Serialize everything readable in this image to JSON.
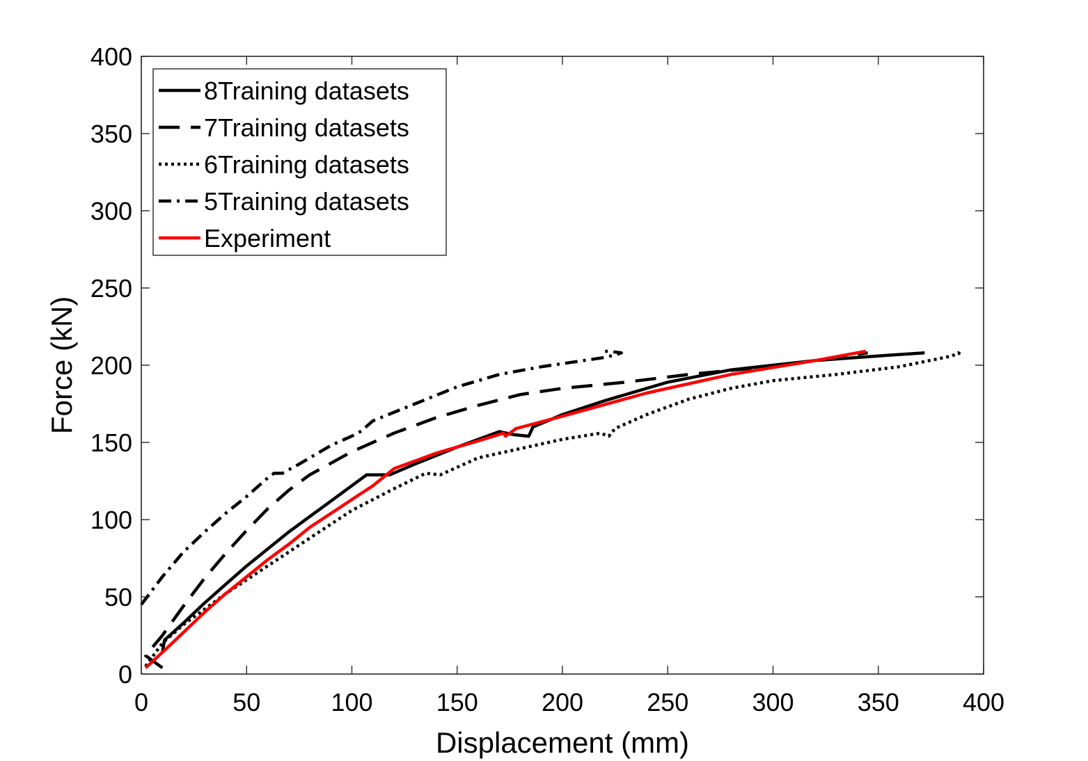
{
  "chart_data": {
    "type": "line",
    "xlabel": "Displacement (mm)",
    "ylabel": "Force (kN)",
    "xlim": [
      0,
      400
    ],
    "ylim": [
      0,
      400
    ],
    "xticks": [
      0,
      50,
      100,
      150,
      200,
      250,
      300,
      350,
      400
    ],
    "yticks": [
      0,
      50,
      100,
      150,
      200,
      250,
      300,
      350,
      400
    ],
    "grid": false,
    "legend_position": "top-left",
    "series": [
      {
        "name": "8Training datasets",
        "color": "#000000",
        "style": "solid",
        "x": [
          10,
          11,
          20,
          30,
          40,
          50,
          60,
          70,
          80,
          90,
          100,
          107,
          118,
          130,
          150,
          170,
          177,
          184,
          186,
          200,
          220,
          250,
          280,
          320,
          350,
          372
        ],
        "y": [
          14,
          22,
          33,
          46,
          58,
          70,
          81,
          92,
          102,
          112,
          122,
          129,
          129,
          136,
          147,
          157,
          155,
          154,
          160,
          168,
          177,
          189,
          197,
          203,
          206,
          208
        ]
      },
      {
        "name": "7Training datasets",
        "color": "#000000",
        "style": "dashed",
        "x": [
          10,
          2,
          10,
          20,
          30,
          40,
          50,
          60,
          70,
          80,
          100,
          120,
          140,
          160,
          180,
          200,
          230,
          260,
          290,
          320,
          345
        ],
        "y": [
          4,
          12,
          25,
          44,
          62,
          78,
          93,
          107,
          119,
          129,
          144,
          156,
          166,
          174,
          181,
          185,
          189,
          194,
          198,
          203,
          208
        ]
      },
      {
        "name": "6Training datasets",
        "color": "#000000",
        "style": "dotted",
        "x": [
          2,
          10,
          20,
          40,
          60,
          80,
          100,
          120,
          135,
          142,
          160,
          180,
          200,
          218,
          222,
          225,
          240,
          260,
          280,
          300,
          330,
          360,
          385,
          388,
          390
        ],
        "y": [
          5,
          20,
          32,
          52,
          70,
          88,
          106,
          120,
          130,
          129,
          140,
          146,
          152,
          156,
          154,
          159,
          168,
          178,
          185,
          190,
          194,
          199,
          206,
          208,
          206
        ]
      },
      {
        "name": "5Training datasets",
        "color": "#000000",
        "style": "dashdot",
        "x": [
          0,
          10,
          20,
          30,
          40,
          50,
          60,
          63,
          67,
          75,
          90,
          103,
          105,
          110,
          130,
          150,
          170,
          190,
          210,
          220,
          226,
          228,
          222,
          218
        ],
        "y": [
          45,
          63,
          79,
          92,
          104,
          115,
          127,
          130,
          130,
          136,
          148,
          156,
          158,
          164,
          175,
          186,
          194,
          199,
          203,
          205,
          207,
          208,
          209,
          209
        ]
      },
      {
        "name": "Experiment",
        "color": "#ff0000",
        "style": "solid",
        "x": [
          2,
          10,
          20,
          30,
          40,
          50,
          60,
          70,
          80,
          90,
          100,
          110,
          120,
          140,
          160,
          172,
          173,
          178,
          200,
          240,
          280,
          320,
          344
        ],
        "y": [
          4,
          14,
          27,
          40,
          52,
          63,
          74,
          84,
          95,
          104,
          113,
          122,
          133,
          143,
          151,
          156,
          154,
          159,
          167,
          182,
          194,
          203,
          209
        ]
      }
    ]
  }
}
